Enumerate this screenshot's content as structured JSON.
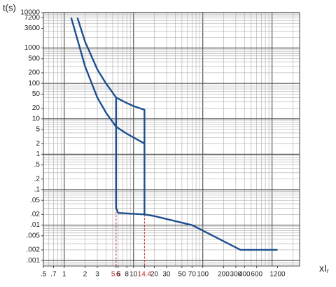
{
  "chart_data": {
    "type": "line",
    "y_label": "t(s)",
    "x_label": "xI",
    "x_label_sub": "r",
    "log_x": true,
    "log_y": true,
    "grid": true,
    "xlim": [
      0.5,
      2500
    ],
    "ylim": [
      0.0007,
      10000
    ],
    "xticks": [
      {
        "value": 0.5,
        "label": ".5"
      },
      {
        "value": 0.7,
        "label": ".7"
      },
      1,
      2,
      3,
      5.6,
      6,
      8,
      10,
      14.4,
      20,
      30,
      50,
      70,
      100,
      200,
      300,
      400,
      600,
      1200
    ],
    "yticks": [
      10000,
      7200,
      3600,
      1000,
      500,
      200,
      100,
      50,
      20,
      10,
      5,
      2,
      1,
      {
        "value": 0.5,
        "label": ".5"
      },
      {
        "value": 0.2,
        "label": ".2"
      },
      {
        "value": 0.1,
        "label": ".1"
      },
      {
        "value": 0.05,
        "label": ".05"
      },
      {
        "value": 0.02,
        "label": ".02"
      },
      {
        "value": 0.01,
        "label": ".01"
      },
      {
        "value": 0.005,
        "label": ".005"
      },
      {
        "value": 0.002,
        "label": ".002"
      },
      {
        "value": 0.001,
        "label": ".001"
      }
    ],
    "reference_lines": [
      {
        "x": 5.6,
        "y": 0.03,
        "color": "#c0282d"
      },
      {
        "x": 14.4,
        "y": 0.02,
        "color": "#c0282d"
      }
    ],
    "series": [
      {
        "color": "#1f4f8f",
        "x": [
          1.55,
          2,
          3,
          4,
          5,
          5.6,
          8,
          10,
          14.4,
          14.4,
          20,
          70,
          350,
          1200
        ],
        "values": [
          7200,
          1500,
          250,
          100,
          55,
          40,
          28,
          23,
          18,
          0.02,
          0.018,
          0.01,
          0.002,
          0.002
        ]
      },
      {
        "color": "#1f4f8f",
        "x": [
          1.26,
          2,
          3,
          4,
          5.6,
          8,
          14.4
        ],
        "values": [
          7200,
          300,
          40,
          15,
          6,
          3.8,
          2
        ]
      },
      {
        "color": "#1f4f8f",
        "x": [
          5.6,
          5.6,
          6,
          14.4
        ],
        "values": [
          40,
          0.03,
          0.022,
          0.02
        ]
      }
    ]
  }
}
